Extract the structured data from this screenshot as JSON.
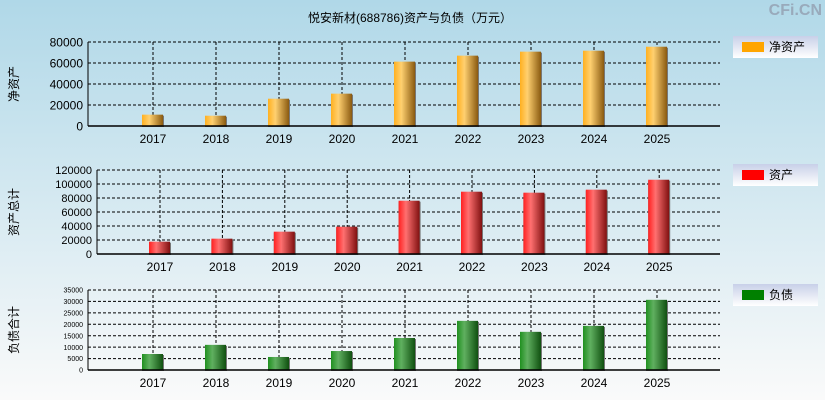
{
  "title": "悦安新材(688786)资产与负债（万元）",
  "watermark": "CFi.CN",
  "chart_data": [
    {
      "type": "bar",
      "ylabel": "净资产",
      "legend": "净资产",
      "color": "#ffa500",
      "categories": [
        "2017",
        "2018",
        "2019",
        "2020",
        "2021",
        "2022",
        "2023",
        "2024",
        "2025"
      ],
      "values": [
        10800,
        9800,
        26000,
        30800,
        61300,
        67000,
        70800,
        71700,
        75500
      ],
      "ylim": [
        0,
        80000
      ],
      "yticks": [
        0,
        20000,
        40000,
        60000,
        80000
      ],
      "grid": true,
      "legend_position": "right"
    },
    {
      "type": "bar",
      "ylabel": "资产总计",
      "legend": "资产",
      "color": "#ff0000",
      "categories": [
        "2017",
        "2018",
        "2019",
        "2020",
        "2021",
        "2022",
        "2023",
        "2024",
        "2025"
      ],
      "values": [
        17600,
        21900,
        31900,
        39000,
        76100,
        89000,
        87600,
        91900,
        106100
      ],
      "ylim": [
        0,
        120000
      ],
      "yticks": [
        0,
        20000,
        40000,
        60000,
        80000,
        100000,
        120000
      ],
      "grid": true,
      "legend_position": "right"
    },
    {
      "type": "bar",
      "ylabel": "负债合计",
      "legend": "负债",
      "color": "#008000",
      "categories": [
        "2017",
        "2018",
        "2019",
        "2020",
        "2021",
        "2022",
        "2023",
        "2024",
        "2025"
      ],
      "values": [
        7000,
        11000,
        5700,
        8300,
        14000,
        21500,
        16700,
        19300,
        30700
      ],
      "ylim": [
        0,
        35000
      ],
      "yticks": [
        0,
        5000,
        10000,
        15000,
        20000,
        25000,
        30000,
        35000
      ],
      "grid": true,
      "legend_position": "right"
    }
  ]
}
